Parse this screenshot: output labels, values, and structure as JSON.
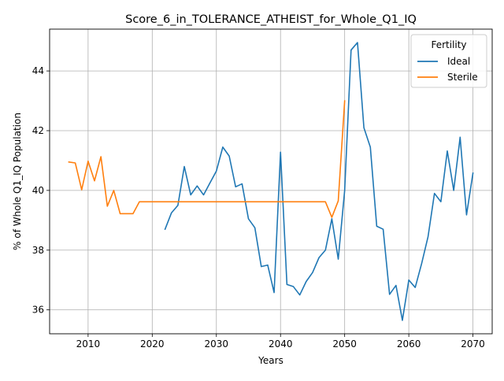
{
  "chart_data": {
    "type": "line",
    "title": "Score_6_in_TOLERANCE_ATHEIST_for_Whole_Q1_IQ",
    "xlabel": "Years",
    "ylabel": "% of Whole Q1_IQ Population",
    "xlim": [
      2004,
      2073
    ],
    "ylim": [
      35.2,
      45.4
    ],
    "xticks": [
      2010,
      2020,
      2030,
      2040,
      2050,
      2060,
      2070
    ],
    "yticks": [
      36,
      38,
      40,
      42,
      44
    ],
    "grid": true,
    "legend": {
      "title": "Fertility",
      "placement": "top-right"
    },
    "series": [
      {
        "name": "Ideal",
        "color": "#1f77b4",
        "x": [
          2022,
          2023,
          2024,
          2025,
          2026,
          2027,
          2028,
          2029,
          2030,
          2031,
          2032,
          2033,
          2034,
          2035,
          2036,
          2037,
          2038,
          2039,
          2040,
          2041,
          2042,
          2043,
          2044,
          2045,
          2046,
          2047,
          2048,
          2049,
          2050,
          2051,
          2052,
          2053,
          2054,
          2055,
          2056,
          2057,
          2058,
          2059,
          2060,
          2061,
          2062,
          2063,
          2064,
          2065,
          2066,
          2067,
          2068,
          2069,
          2070
        ],
        "y": [
          38.7,
          39.25,
          39.5,
          40.8,
          39.85,
          40.15,
          39.85,
          40.25,
          40.65,
          41.45,
          41.15,
          40.12,
          40.22,
          39.05,
          38.75,
          37.45,
          37.5,
          36.58,
          41.28,
          36.85,
          36.78,
          36.5,
          36.95,
          37.25,
          37.75,
          38.0,
          39.05,
          37.7,
          40.0,
          44.7,
          44.95,
          42.1,
          41.45,
          38.8,
          38.7,
          36.52,
          36.82,
          35.65,
          37.0,
          36.75,
          37.55,
          38.45,
          39.9,
          39.62,
          41.32,
          40.0,
          41.78,
          39.18,
          40.58
        ]
      },
      {
        "name": "Sterile",
        "color": "#ff7f0e",
        "x": [
          2007,
          2008,
          2009,
          2010,
          2011,
          2012,
          2013,
          2014,
          2015,
          2016,
          2017,
          2018,
          2019,
          2020,
          2021,
          2022,
          2023,
          2024,
          2025,
          2026,
          2027,
          2028,
          2029,
          2030,
          2031,
          2032,
          2033,
          2034,
          2035,
          2036,
          2037,
          2038,
          2039,
          2040,
          2041,
          2042,
          2043,
          2044,
          2045,
          2046,
          2047,
          2048,
          2049,
          2050
        ],
        "y": [
          40.95,
          40.92,
          40.02,
          40.98,
          40.32,
          41.13,
          39.47,
          40.0,
          39.22,
          39.22,
          39.22,
          39.62,
          39.62,
          39.62,
          39.62,
          39.62,
          39.62,
          39.62,
          39.62,
          39.62,
          39.62,
          39.62,
          39.62,
          39.62,
          39.62,
          39.62,
          39.62,
          39.62,
          39.62,
          39.62,
          39.62,
          39.62,
          39.62,
          39.62,
          39.62,
          39.62,
          39.62,
          39.62,
          39.62,
          39.62,
          39.62,
          39.1,
          39.65,
          43.0
        ]
      }
    ]
  }
}
